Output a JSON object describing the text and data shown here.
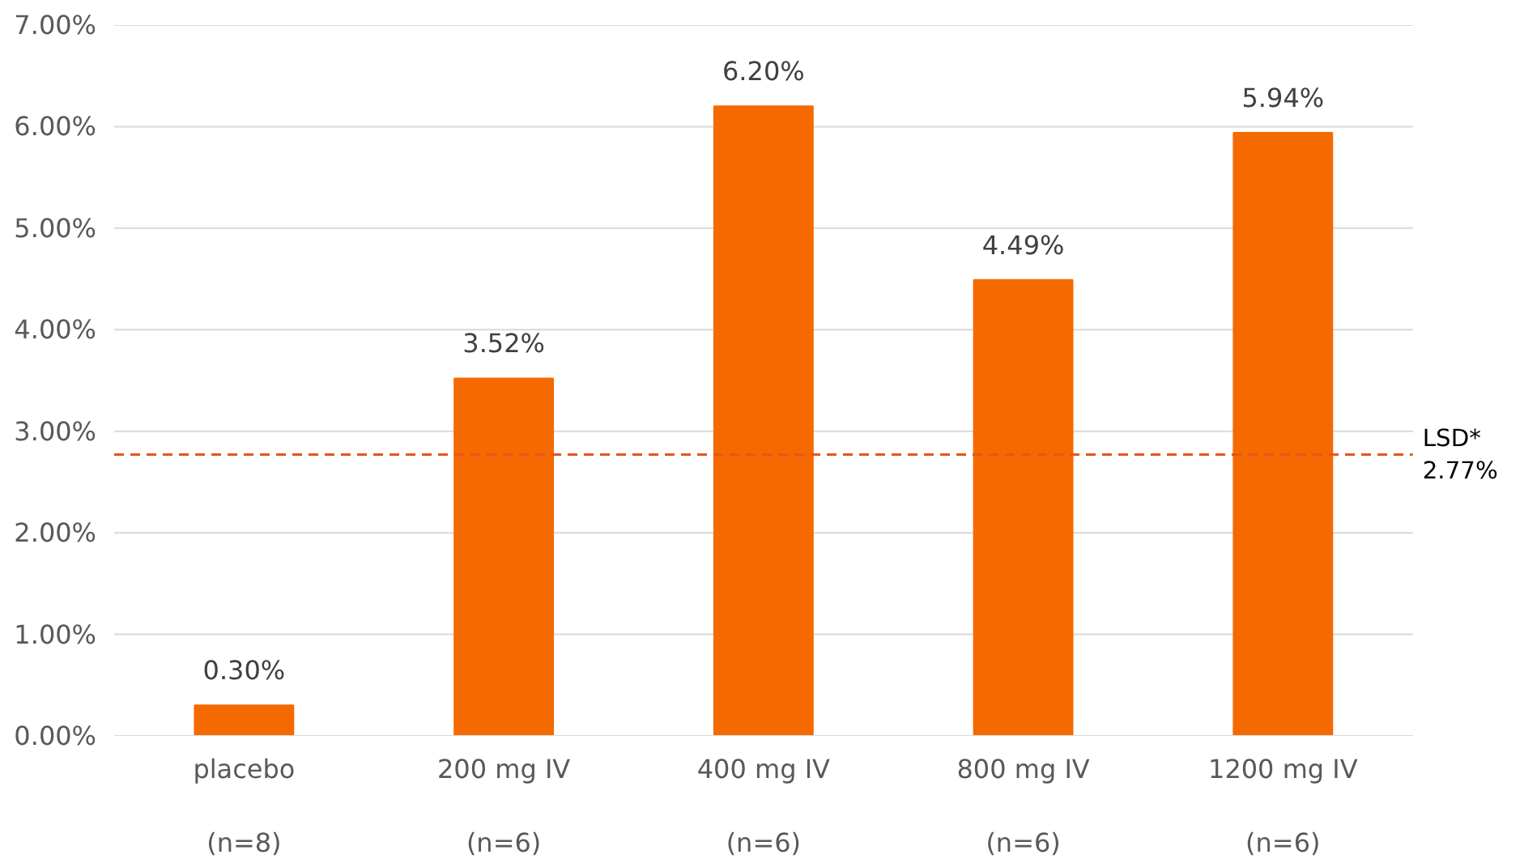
{
  "chart_data": {
    "type": "bar",
    "categories": [
      "placebo\n\n(n=8)",
      "200 mg IV\n\n(n=6)",
      "400 mg IV\n\n(n=6)",
      "800 mg IV\n\n(n=6)",
      "1200 mg IV\n\n(n=6)"
    ],
    "values": [
      0.3,
      3.52,
      6.2,
      4.49,
      5.94
    ],
    "value_labels": [
      "0.30%",
      "3.52%",
      "6.20%",
      "4.49%",
      "5.94%"
    ],
    "color": "#f56a00",
    "ylim": [
      0,
      7
    ],
    "yticks": [
      {
        "value": 0,
        "label": "0.00%"
      },
      {
        "value": 1,
        "label": "1.00%"
      },
      {
        "value": 2,
        "label": "2.00%"
      },
      {
        "value": 3,
        "label": "3.00%"
      },
      {
        "value": 4,
        "label": "4.00%"
      },
      {
        "value": 5,
        "label": "5.00%"
      },
      {
        "value": 6,
        "label": "6.00%"
      },
      {
        "value": 7,
        "label": "7.00%"
      }
    ],
    "ref_lines": [
      {
        "axis": "y",
        "value": 2.77,
        "label": "LSD*\n2.77%",
        "color": "#e8541c",
        "line_style": "dashed"
      }
    ],
    "grid": "y"
  }
}
